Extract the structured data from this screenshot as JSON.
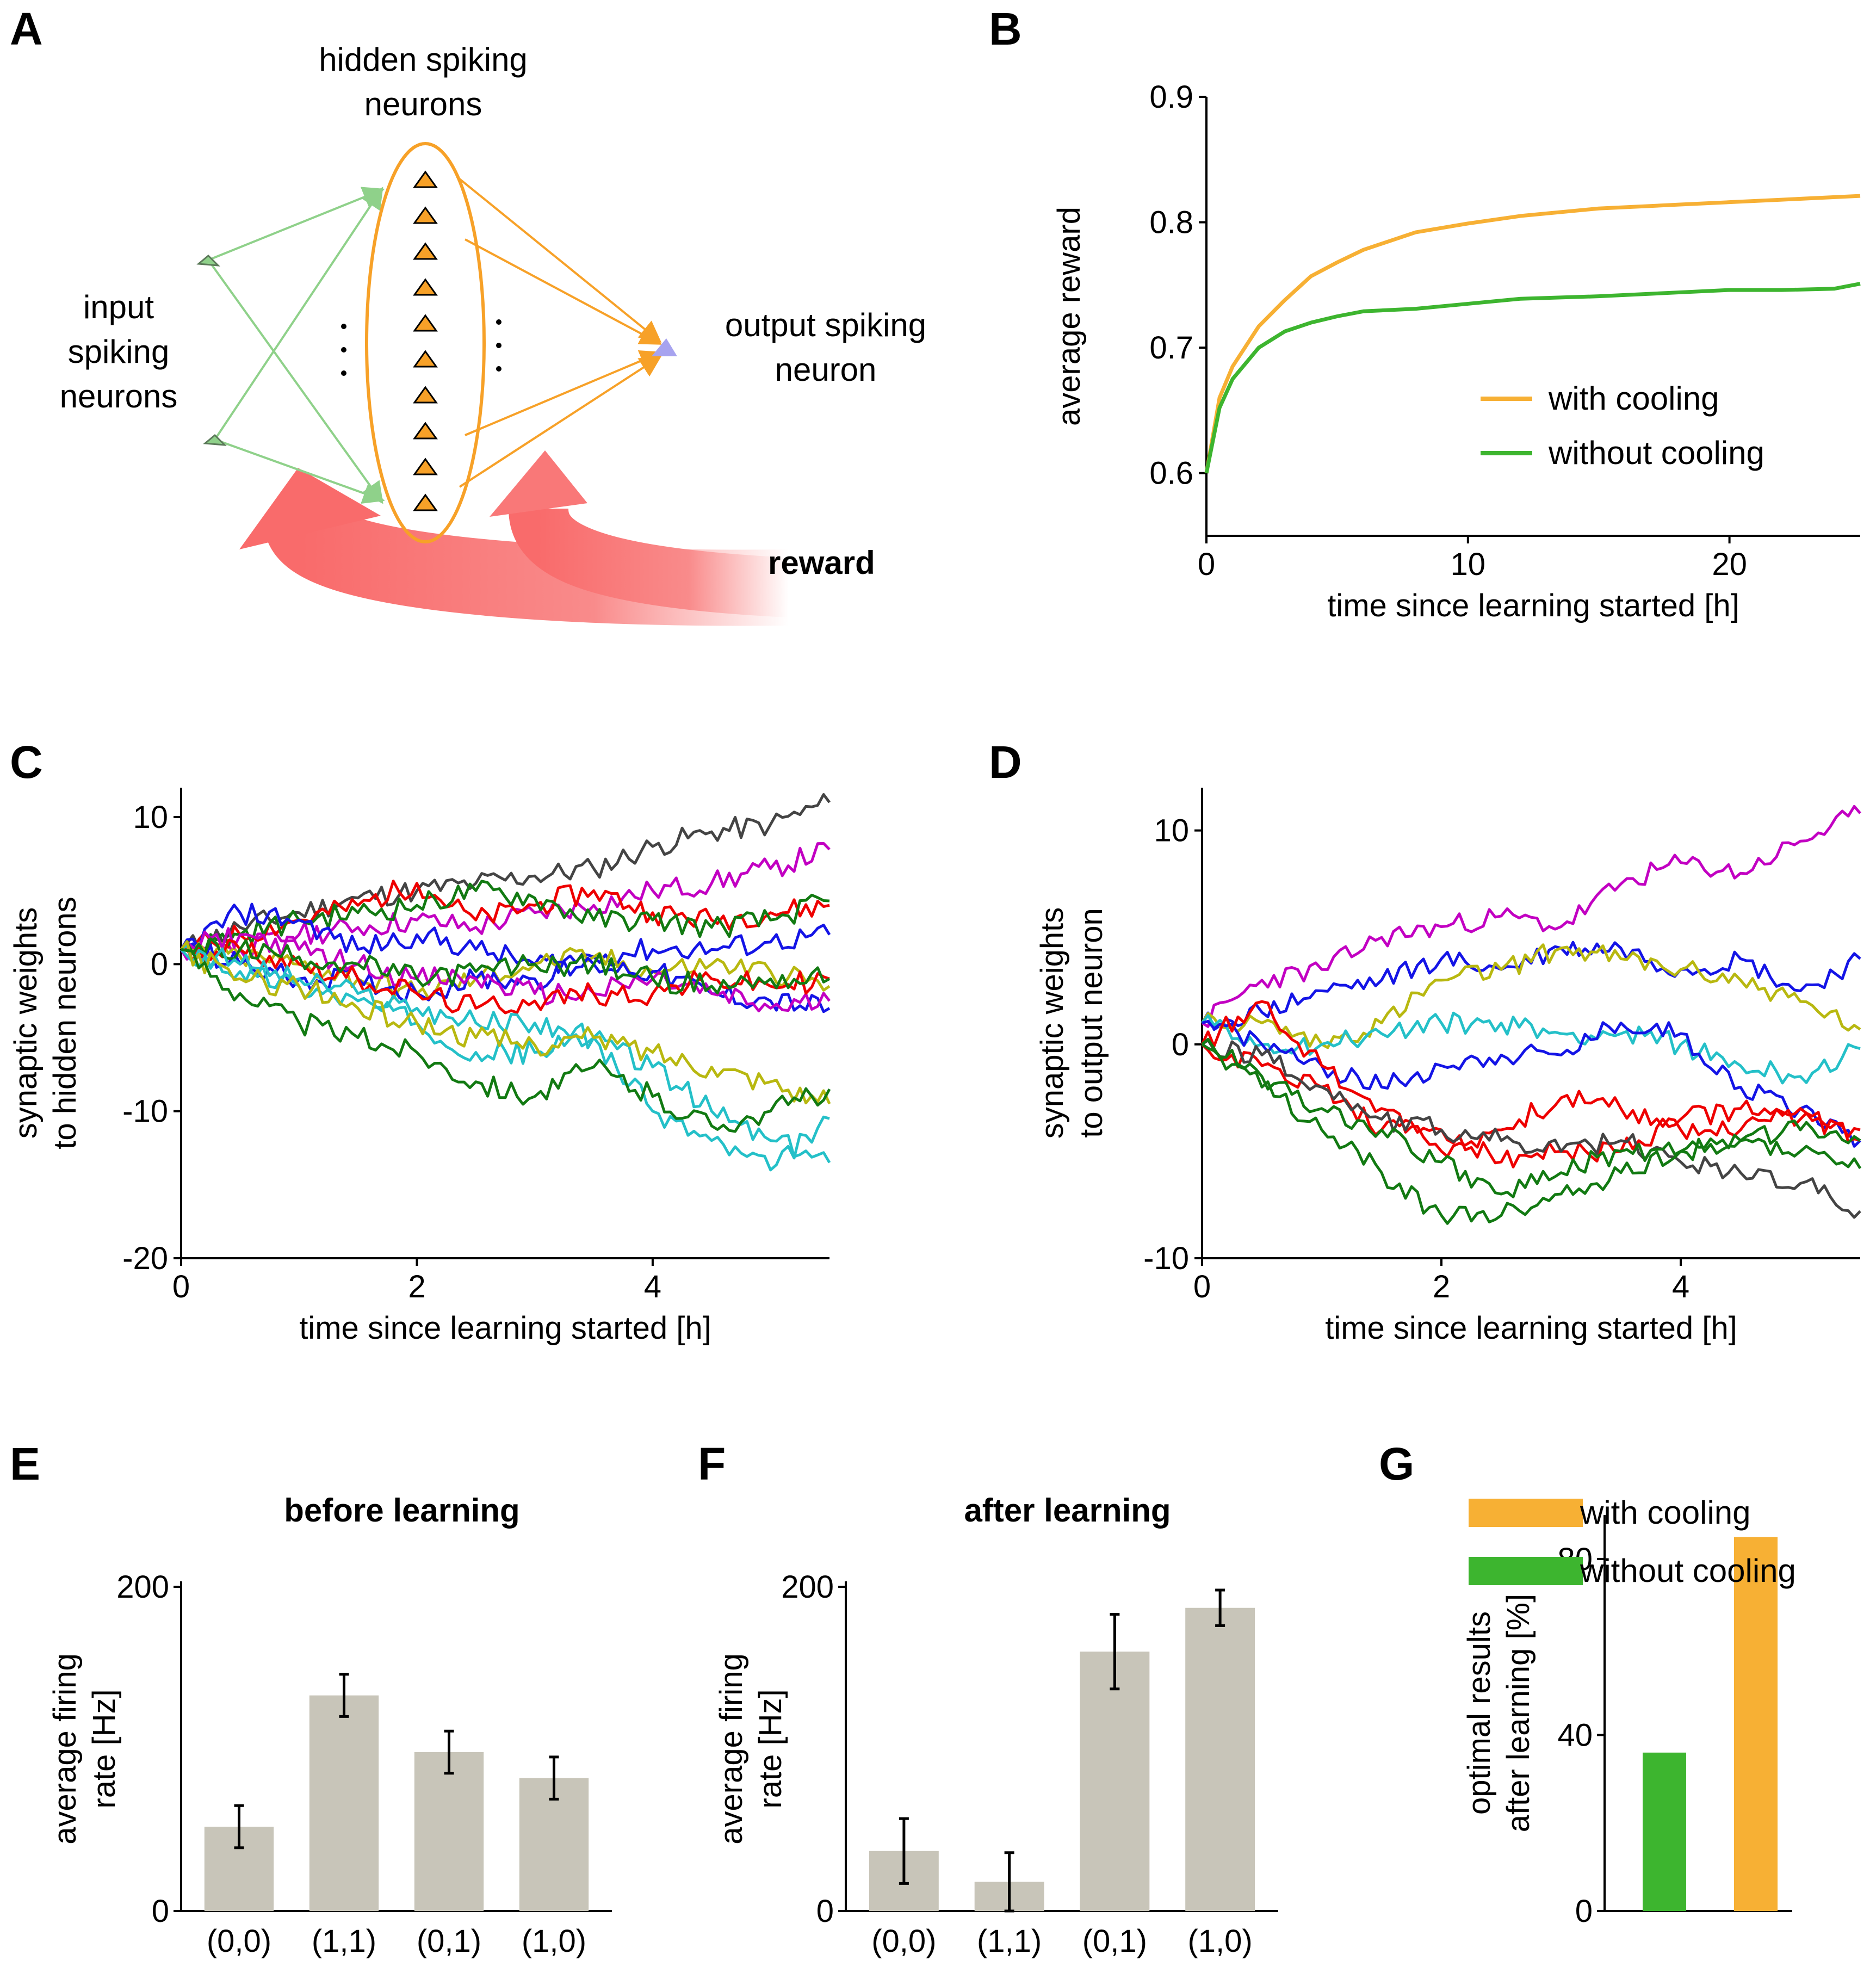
{
  "panels": {
    "A": {
      "letter": "A",
      "hidden_label_1": "hidden spiking",
      "hidden_label_2": "neurons",
      "input_label_1": "input",
      "input_label_2": "spiking",
      "input_label_3": "neurons",
      "output_label_1": "output spiking",
      "output_label_2": "neuron",
      "reward_label": "reward",
      "hidden_neuron_count": 10,
      "colors": {
        "hidden": "#f7a128",
        "input": "#8fd18a",
        "output": "#a7a3ef",
        "reward": "#f96b6b"
      }
    },
    "B": {
      "letter": "B"
    },
    "C": {
      "letter": "C"
    },
    "D": {
      "letter": "D"
    },
    "E": {
      "letter": "E"
    },
    "F": {
      "letter": "F"
    },
    "G": {
      "letter": "G"
    }
  },
  "chart_data": [
    {
      "id": "B",
      "type": "line",
      "xlabel": "time since learning started [h]",
      "ylabel": "average reward",
      "xlim": [
        0,
        25
      ],
      "ylim": [
        0.55,
        0.9
      ],
      "xticks": [
        0,
        10,
        20
      ],
      "yticks": [
        0.6,
        0.7,
        0.8,
        0.9
      ],
      "xticklabels": [
        "0",
        "10",
        "20"
      ],
      "yticklabels": [
        "0.6",
        "0.7",
        "0.8",
        "0.9"
      ],
      "legend": [
        "with cooling",
        "without cooling"
      ],
      "legend_position": "center-right",
      "series": [
        {
          "name": "with cooling",
          "color": "#f7b034",
          "x": [
            0,
            0.5,
            1,
            2,
            3,
            4,
            5,
            6,
            8,
            10,
            12,
            15,
            18,
            20,
            22,
            25
          ],
          "y": [
            0.6,
            0.66,
            0.685,
            0.717,
            0.738,
            0.757,
            0.768,
            0.778,
            0.792,
            0.799,
            0.805,
            0.811,
            0.814,
            0.816,
            0.818,
            0.821
          ]
        },
        {
          "name": "without cooling",
          "color": "#3db52f",
          "x": [
            0,
            0.5,
            1,
            2,
            3,
            4,
            5,
            6,
            8,
            10,
            12,
            15,
            18,
            20,
            22,
            24,
            25
          ],
          "y": [
            0.6,
            0.652,
            0.675,
            0.7,
            0.713,
            0.72,
            0.725,
            0.729,
            0.731,
            0.735,
            0.739,
            0.741,
            0.744,
            0.746,
            0.746,
            0.747,
            0.751
          ]
        }
      ]
    },
    {
      "id": "C",
      "type": "line",
      "xlabel": "time since learning started [h]",
      "ylabel": "synaptic weights\nto hidden neurons",
      "xlim": [
        0,
        5.5
      ],
      "ylim": [
        -20,
        12
      ],
      "xticks": [
        0,
        2,
        4
      ],
      "yticks": [
        -20,
        -10,
        0,
        10
      ],
      "xticklabels": [
        "0",
        "2",
        "4"
      ],
      "yticklabels": [
        "-20",
        "-10",
        "0",
        "10"
      ],
      "x": [
        0,
        0.5,
        1,
        1.5,
        2,
        2.5,
        3,
        3.5,
        4,
        4.5,
        5,
        5.5
      ],
      "series": [
        {
          "color": "#444444",
          "values": [
            1,
            2.5,
            3.5,
            4.5,
            5,
            5.5,
            6,
            6.5,
            8,
            9,
            9.5,
            11
          ]
        },
        {
          "color": "#c200c2",
          "values": [
            1,
            1,
            2,
            2.5,
            3,
            2.5,
            3.5,
            4,
            5,
            5.5,
            6.5,
            7.8
          ]
        },
        {
          "color": "#ee0000",
          "values": [
            1,
            2,
            3,
            4,
            5.5,
            3,
            4,
            5,
            3.5,
            3,
            3.5,
            4
          ]
        },
        {
          "color": "#127a12",
          "values": [
            1,
            2,
            3,
            3.5,
            4,
            5,
            4.5,
            3,
            3,
            2.5,
            3,
            4.3
          ]
        },
        {
          "color": "#1414e6",
          "values": [
            1,
            3.5,
            3,
            1,
            2,
            1,
            0,
            0.5,
            1,
            1,
            1.5,
            2
          ]
        },
        {
          "color": "#b8b810",
          "values": [
            1,
            0.5,
            0,
            -1,
            -2,
            -1,
            0,
            0.5,
            -0.5,
            0,
            -0.5,
            -1.5
          ]
        },
        {
          "color": "#1414e6",
          "values": [
            1,
            0,
            -1,
            -1,
            -2,
            -1,
            -1,
            0,
            -0.5,
            -2,
            -2.5,
            -3
          ]
        },
        {
          "color": "#c200c2",
          "values": [
            1,
            2,
            1,
            0,
            -1,
            -1,
            -2,
            -2,
            -1,
            -2,
            -3,
            -2.5
          ]
        },
        {
          "color": "#ee0000",
          "values": [
            1,
            1,
            0,
            -1,
            -2,
            -3,
            -2.5,
            -2,
            -2,
            -1,
            -1.5,
            -1
          ]
        },
        {
          "color": "#127a12",
          "values": [
            1,
            1,
            0.5,
            0,
            -1,
            -0.5,
            0,
            0,
            -1,
            -1.5,
            -1,
            -1
          ]
        },
        {
          "color": "#24c0c8",
          "values": [
            1,
            0,
            -1,
            -2,
            -3,
            -4,
            -4,
            -5,
            -7,
            -10,
            -12,
            -13.5
          ]
        },
        {
          "color": "#24c0c8",
          "values": [
            1,
            -0.5,
            -1.5,
            -2.5,
            -4,
            -6,
            -6,
            -5,
            -10,
            -12,
            -14,
            -10.5
          ]
        },
        {
          "color": "#b8b810",
          "values": [
            1,
            -1,
            -1.5,
            -3,
            -4,
            -5,
            -5.5,
            -5,
            -6,
            -7,
            -8,
            -9.5
          ]
        },
        {
          "color": "#127a12",
          "values": [
            1,
            -2,
            -4,
            -5,
            -6,
            -8,
            -9,
            -7,
            -9,
            -11,
            -10,
            -8.5
          ]
        }
      ]
    },
    {
      "id": "D",
      "type": "line",
      "xlabel": "time since learning started [h]",
      "ylabel": "synaptic weights\nto output neuron",
      "xlim": [
        0,
        5.5
      ],
      "ylim": [
        -10,
        12
      ],
      "xticks": [
        0,
        2,
        4
      ],
      "yticks": [
        -10,
        0,
        10
      ],
      "xticklabels": [
        "0",
        "2",
        "4"
      ],
      "yticklabels": [
        "-10",
        "0",
        "10"
      ],
      "x": [
        0,
        0.5,
        1,
        1.5,
        2,
        2.5,
        3,
        3.5,
        4,
        4.5,
        5,
        5.5
      ],
      "series": [
        {
          "color": "#c200c2",
          "values": [
            1,
            3,
            3.5,
            5,
            5.5,
            6,
            5.5,
            7.5,
            8.5,
            8,
            9.5,
            10.8
          ]
        },
        {
          "color": "#1414e6",
          "values": [
            1,
            1.5,
            2.5,
            3,
            4,
            3.5,
            4.5,
            4.5,
            3.5,
            4,
            2.5,
            4
          ]
        },
        {
          "color": "#b8b810",
          "values": [
            1,
            1,
            0,
            1,
            3,
            3.5,
            4.5,
            4,
            3.5,
            3,
            2,
            0.7
          ]
        },
        {
          "color": "#24c0c8",
          "values": [
            1,
            0,
            0,
            0.5,
            1,
            1,
            0.5,
            0.5,
            0,
            -1,
            -1.5,
            -0.2
          ]
        },
        {
          "color": "#1414e6",
          "values": [
            1,
            0,
            -1,
            -2,
            -1,
            -0.5,
            -0.5,
            1,
            0.5,
            -2,
            -3,
            -4.5
          ]
        },
        {
          "color": "#ee0000",
          "values": [
            0,
            2,
            -1,
            -3,
            -5,
            -4,
            -2.5,
            -3,
            -4,
            -4,
            -3,
            -4.5
          ]
        },
        {
          "color": "#ee0000",
          "values": [
            0,
            -1,
            -2,
            -4,
            -4,
            -5.5,
            -5,
            -5,
            -3.5,
            -3,
            -3.5,
            -4
          ]
        },
        {
          "color": "#444444",
          "values": [
            0,
            -0.5,
            -2,
            -3.5,
            -4,
            -4.5,
            -5,
            -4.5,
            -5.5,
            -6,
            -6.5,
            -7.8
          ]
        },
        {
          "color": "#127a12",
          "values": [
            0,
            -1.5,
            -3,
            -4,
            -5.5,
            -7,
            -6,
            -5,
            -5,
            -4.5,
            -5,
            -5.8
          ]
        },
        {
          "color": "#127a12",
          "values": [
            0,
            -2,
            -4,
            -6,
            -8,
            -8,
            -7,
            -6,
            -5,
            -4.5,
            -4,
            -4.5
          ]
        }
      ]
    },
    {
      "id": "E",
      "type": "bar",
      "title": "before learning",
      "ylabel": "average firing\nrate [Hz]",
      "categories": [
        "(0,0)",
        "(1,1)",
        "(0,1)",
        "(1,0)"
      ],
      "values": [
        52,
        133,
        98,
        82
      ],
      "errors": [
        13,
        13,
        13,
        13
      ],
      "ylim": [
        0,
        200
      ],
      "yticks": [
        0,
        200
      ],
      "yticklabels": [
        "0",
        "200"
      ],
      "bar_color": "#c8c5b9"
    },
    {
      "id": "F",
      "type": "bar",
      "title": "after learning",
      "ylabel": "average firing\nrate [Hz]",
      "categories": [
        "(0,0)",
        "(1,1)",
        "(0,1)",
        "(1,0)"
      ],
      "values": [
        37,
        18,
        160,
        187
      ],
      "errors": [
        20,
        18,
        23,
        11
      ],
      "ylim": [
        0,
        200
      ],
      "yticks": [
        0,
        200
      ],
      "yticklabels": [
        "0",
        "200"
      ],
      "bar_color": "#c8c5b9"
    },
    {
      "id": "G",
      "type": "bar",
      "ylabel": "optimal results\nafter learning  [%]",
      "categories": [
        "without cooling",
        "with cooling"
      ],
      "values": [
        36,
        85
      ],
      "colors": [
        "#3db52f",
        "#f7b034"
      ],
      "ylim": [
        0,
        90
      ],
      "yticks": [
        0,
        40,
        80
      ],
      "yticklabels": [
        "0",
        "40",
        "80"
      ],
      "legend": [
        {
          "label": "with cooling",
          "color": "#f7b034"
        },
        {
          "label": "without cooling",
          "color": "#3db52f"
        }
      ],
      "legend_position": "top"
    }
  ]
}
